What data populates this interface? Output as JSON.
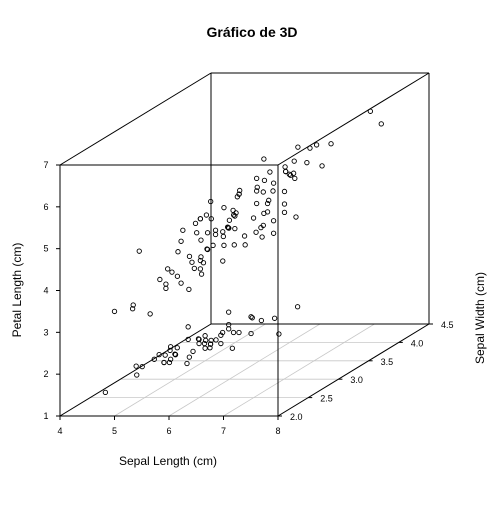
{
  "chart_data": {
    "type": "scatter",
    "projection": "3d",
    "title": "Gráfico de 3D",
    "xlabel": "Sepal Length (cm)",
    "ylabel": "Sepal Width (cm)",
    "zlabel": "Petal Length (cm)",
    "xlim": [
      4,
      8
    ],
    "ylim": [
      2,
      4.5
    ],
    "zlim": [
      1,
      7
    ],
    "xticks": [
      "4",
      "5",
      "6",
      "7",
      "8"
    ],
    "yticks": [
      "2.0",
      "2.5",
      "3.0",
      "3.5",
      "4.0",
      "4.5"
    ],
    "zticks": [
      "1",
      "2",
      "3",
      "4",
      "5",
      "6",
      "7"
    ],
    "grid": true,
    "marker": "open-circle",
    "series": [
      {
        "points": [
          [
            5.1,
            3.5,
            1.4
          ],
          [
            4.9,
            3.0,
            1.4
          ],
          [
            4.7,
            3.2,
            1.3
          ],
          [
            4.6,
            3.1,
            1.5
          ],
          [
            5.0,
            3.6,
            1.4
          ],
          [
            5.4,
            3.9,
            1.7
          ],
          [
            4.6,
            3.4,
            1.4
          ],
          [
            5.0,
            3.4,
            1.5
          ],
          [
            4.4,
            2.9,
            1.4
          ],
          [
            4.9,
            3.1,
            1.5
          ],
          [
            5.4,
            3.7,
            1.5
          ],
          [
            4.8,
            3.4,
            1.6
          ],
          [
            4.8,
            3.0,
            1.4
          ],
          [
            4.3,
            3.0,
            1.1
          ],
          [
            5.8,
            4.0,
            1.2
          ],
          [
            5.7,
            4.4,
            1.5
          ],
          [
            5.4,
            3.9,
            1.3
          ],
          [
            5.1,
            3.5,
            1.4
          ],
          [
            5.7,
            3.8,
            1.7
          ],
          [
            5.1,
            3.8,
            1.5
          ],
          [
            5.4,
            3.4,
            1.7
          ],
          [
            5.1,
            3.7,
            1.5
          ],
          [
            4.6,
            3.6,
            1.0
          ],
          [
            5.1,
            3.3,
            1.7
          ],
          [
            4.8,
            3.4,
            1.9
          ],
          [
            5.0,
            3.0,
            1.6
          ],
          [
            5.0,
            3.4,
            1.6
          ],
          [
            5.2,
            3.5,
            1.5
          ],
          [
            5.2,
            3.4,
            1.4
          ],
          [
            4.7,
            3.2,
            1.6
          ],
          [
            4.8,
            3.1,
            1.6
          ],
          [
            5.4,
            3.4,
            1.5
          ],
          [
            5.2,
            4.1,
            1.5
          ],
          [
            5.5,
            4.2,
            1.4
          ],
          [
            4.9,
            3.1,
            1.5
          ],
          [
            5.0,
            3.2,
            1.2
          ],
          [
            5.5,
            3.5,
            1.3
          ],
          [
            4.9,
            3.6,
            1.4
          ],
          [
            4.4,
            3.0,
            1.3
          ],
          [
            5.1,
            3.4,
            1.5
          ],
          [
            5.0,
            3.5,
            1.3
          ],
          [
            4.5,
            2.3,
            1.3
          ],
          [
            4.4,
            3.2,
            1.3
          ],
          [
            5.0,
            3.5,
            1.6
          ],
          [
            5.1,
            3.8,
            1.9
          ],
          [
            4.8,
            3.0,
            1.4
          ],
          [
            5.1,
            3.8,
            1.6
          ],
          [
            4.6,
            3.2,
            1.4
          ],
          [
            5.3,
            3.7,
            1.5
          ],
          [
            5.0,
            3.3,
            1.4
          ],
          [
            7.0,
            3.2,
            4.7
          ],
          [
            6.4,
            3.2,
            4.5
          ],
          [
            6.9,
            3.1,
            4.9
          ],
          [
            5.5,
            2.3,
            4.0
          ],
          [
            6.5,
            2.8,
            4.6
          ],
          [
            5.7,
            2.8,
            4.5
          ],
          [
            6.3,
            3.3,
            4.7
          ],
          [
            4.9,
            2.4,
            3.3
          ],
          [
            6.6,
            2.9,
            4.6
          ],
          [
            5.2,
            2.7,
            3.9
          ],
          [
            5.0,
            2.0,
            3.5
          ],
          [
            5.9,
            3.0,
            4.2
          ],
          [
            6.0,
            2.2,
            4.0
          ],
          [
            6.1,
            2.9,
            4.7
          ],
          [
            5.6,
            2.9,
            3.6
          ],
          [
            6.7,
            3.1,
            4.4
          ],
          [
            5.6,
            3.0,
            4.5
          ],
          [
            5.8,
            2.7,
            4.1
          ],
          [
            6.2,
            2.2,
            4.5
          ],
          [
            5.6,
            2.5,
            3.9
          ],
          [
            5.9,
            3.2,
            4.8
          ],
          [
            6.1,
            2.8,
            4.0
          ],
          [
            6.3,
            2.5,
            4.9
          ],
          [
            6.1,
            2.8,
            4.7
          ],
          [
            6.4,
            2.9,
            4.3
          ],
          [
            6.6,
            3.0,
            4.4
          ],
          [
            6.8,
            2.8,
            4.8
          ],
          [
            6.7,
            3.0,
            5.0
          ],
          [
            6.0,
            2.9,
            4.5
          ],
          [
            5.7,
            2.6,
            3.5
          ],
          [
            5.5,
            2.4,
            3.8
          ],
          [
            5.5,
            2.4,
            3.7
          ],
          [
            5.8,
            2.7,
            3.9
          ],
          [
            6.0,
            2.7,
            5.1
          ],
          [
            5.4,
            3.0,
            4.5
          ],
          [
            6.0,
            3.4,
            4.5
          ],
          [
            6.7,
            3.1,
            4.7
          ],
          [
            6.3,
            2.3,
            4.4
          ],
          [
            5.6,
            3.0,
            4.1
          ],
          [
            5.5,
            2.5,
            4.0
          ],
          [
            5.5,
            2.6,
            4.4
          ],
          [
            6.1,
            3.0,
            4.6
          ],
          [
            5.8,
            2.6,
            4.0
          ],
          [
            5.0,
            2.3,
            3.3
          ],
          [
            5.6,
            2.7,
            4.2
          ],
          [
            5.7,
            3.0,
            4.2
          ],
          [
            5.7,
            2.9,
            4.2
          ],
          [
            6.2,
            2.9,
            4.3
          ],
          [
            5.1,
            2.5,
            3.0
          ],
          [
            5.7,
            2.8,
            4.1
          ],
          [
            6.3,
            3.3,
            6.0
          ],
          [
            5.8,
            2.7,
            5.1
          ],
          [
            7.1,
            3.0,
            5.9
          ],
          [
            6.3,
            2.9,
            5.6
          ],
          [
            6.5,
            3.0,
            5.8
          ],
          [
            7.6,
            3.0,
            6.6
          ],
          [
            4.9,
            2.5,
            4.5
          ],
          [
            7.3,
            2.9,
            6.3
          ],
          [
            6.7,
            2.5,
            5.8
          ],
          [
            7.2,
            3.6,
            6.1
          ],
          [
            6.5,
            3.2,
            5.1
          ],
          [
            6.4,
            2.7,
            5.3
          ],
          [
            6.8,
            3.0,
            5.5
          ],
          [
            5.7,
            2.5,
            5.0
          ],
          [
            5.8,
            2.8,
            5.1
          ],
          [
            6.4,
            3.2,
            5.3
          ],
          [
            6.5,
            3.0,
            5.5
          ],
          [
            7.7,
            3.8,
            6.7
          ],
          [
            7.7,
            2.6,
            6.9
          ],
          [
            6.0,
            2.2,
            5.0
          ],
          [
            6.9,
            3.2,
            5.7
          ],
          [
            5.6,
            2.8,
            4.9
          ],
          [
            7.7,
            2.8,
            6.7
          ],
          [
            6.3,
            2.7,
            4.9
          ],
          [
            6.7,
            3.3,
            5.7
          ],
          [
            7.2,
            3.2,
            6.0
          ],
          [
            6.2,
            2.8,
            4.8
          ],
          [
            6.1,
            3.0,
            4.9
          ],
          [
            6.4,
            2.8,
            5.6
          ],
          [
            7.2,
            3.0,
            5.8
          ],
          [
            7.4,
            2.8,
            6.1
          ],
          [
            7.9,
            3.8,
            6.4
          ],
          [
            6.4,
            2.8,
            5.6
          ],
          [
            6.3,
            2.8,
            5.1
          ],
          [
            6.1,
            2.6,
            5.6
          ],
          [
            7.7,
            3.0,
            6.1
          ],
          [
            6.3,
            3.4,
            5.6
          ],
          [
            6.4,
            3.1,
            5.5
          ],
          [
            6.0,
            3.0,
            4.8
          ],
          [
            6.9,
            3.1,
            5.4
          ],
          [
            6.7,
            3.1,
            5.6
          ],
          [
            6.9,
            3.1,
            5.1
          ],
          [
            5.8,
            2.7,
            5.1
          ],
          [
            6.8,
            3.2,
            5.9
          ],
          [
            6.7,
            3.3,
            5.7
          ],
          [
            6.7,
            3.0,
            5.2
          ],
          [
            6.3,
            2.5,
            5.0
          ],
          [
            6.5,
            3.0,
            5.2
          ],
          [
            6.2,
            3.4,
            5.4
          ],
          [
            5.9,
            3.0,
            5.1
          ]
        ]
      }
    ]
  }
}
